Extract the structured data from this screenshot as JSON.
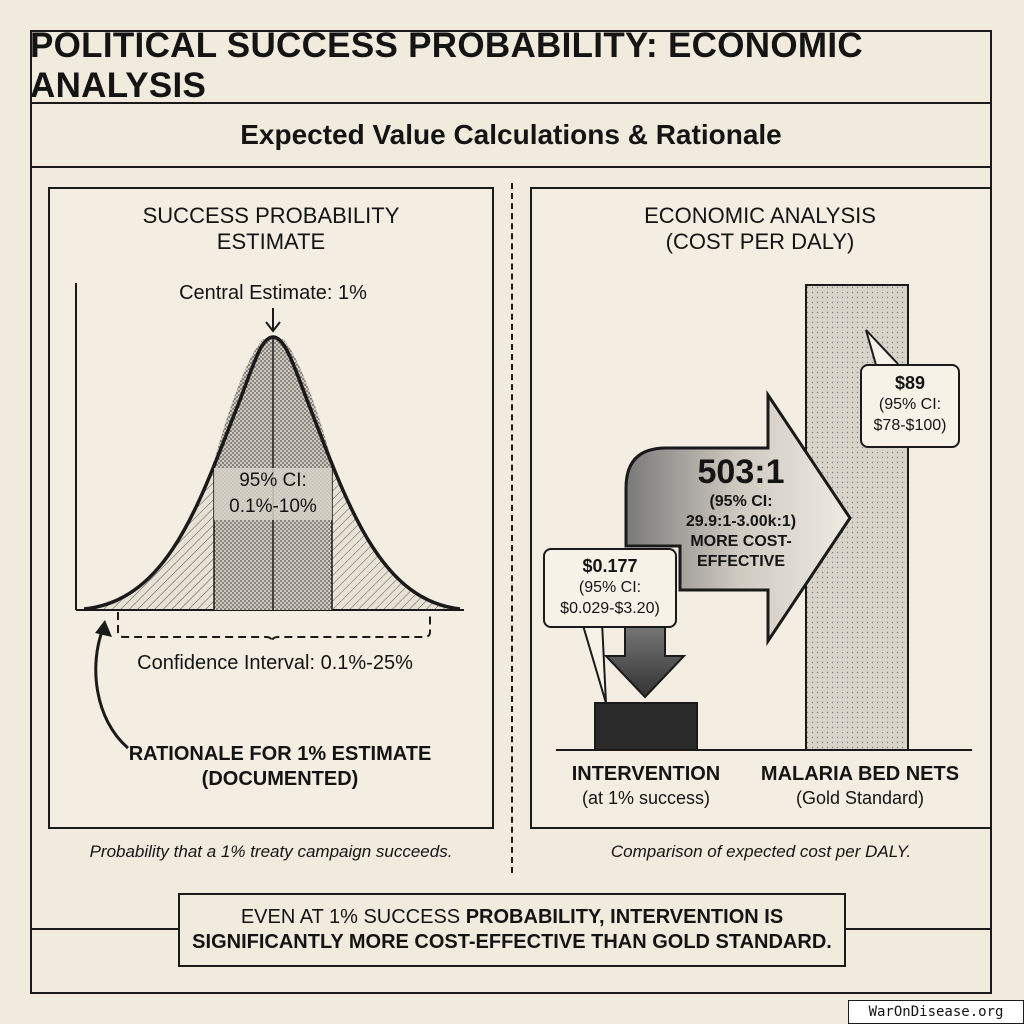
{
  "header": {
    "title": "POLITICAL SUCCESS PROBABILITY: ECONOMIC ANALYSIS",
    "subtitle": "Expected Value Calculations & Rationale"
  },
  "left_panel": {
    "title_line1": "SUCCESS PROBABILITY",
    "title_line2": "ESTIMATE",
    "central_label": "Central Estimate: 1%",
    "ci95_line1": "95% CI:",
    "ci95_line2": "0.1%-10%",
    "ci_label": "Confidence Interval: 0.1%-25%",
    "rationale_line1": "RATIONALE FOR 1% ESTIMATE",
    "rationale_line2": "(DOCUMENTED)",
    "caption": "Probability that a 1% treaty campaign succeeds."
  },
  "right_panel": {
    "title_line1": "ECONOMIC ANALYSIS",
    "title_line2": "(COST PER DALY)",
    "ratio": "503:1",
    "ratio_ci": "(95% CI:",
    "ratio_ci_range": "29.9:1-3.00k:1)",
    "ratio_text1": "MORE COST-",
    "ratio_text2": "EFFECTIVE",
    "intervention_value": "$0.177",
    "intervention_ci": "(95% CI:",
    "intervention_ci_range": "$0.029-$3.20)",
    "nets_value": "$89",
    "nets_ci": "(95% CI:",
    "nets_ci_range": "$78-$100)",
    "intervention_label": "INTERVENTION",
    "intervention_sub": "(at 1% success)",
    "nets_label": "MALARIA BED NETS",
    "nets_sub": "(Gold Standard)",
    "caption": "Comparison of expected cost per DALY."
  },
  "conclusion": {
    "line1_plain": "EVEN AT 1% SUCCESS ",
    "line1_bold": "PROBABILITY, INTERVENTION IS",
    "line2": "SIGNIFICANTLY MORE COST-EFFECTIVE THAN GOLD STANDARD."
  },
  "footer": {
    "site": "WarOnDisease.org"
  },
  "chart_data": [
    {
      "type": "distribution",
      "central_estimate_percent": 1,
      "ci95_percent": [
        0.1,
        10
      ],
      "ci_percent": [
        0.1,
        25
      ]
    },
    {
      "type": "bar",
      "categories": [
        "INTERVENTION",
        "MALARIA BED NETS"
      ],
      "values": [
        0.177,
        89
      ],
      "ci": [
        [
          0.029,
          3.2
        ],
        [
          78,
          100
        ]
      ],
      "ratio": 503
    }
  ],
  "colors": {
    "background": "#f1ebdd",
    "ink": "#1a1a1a",
    "dark_bar": "#2a2a2a",
    "light_bar": "#d6d0c4"
  }
}
